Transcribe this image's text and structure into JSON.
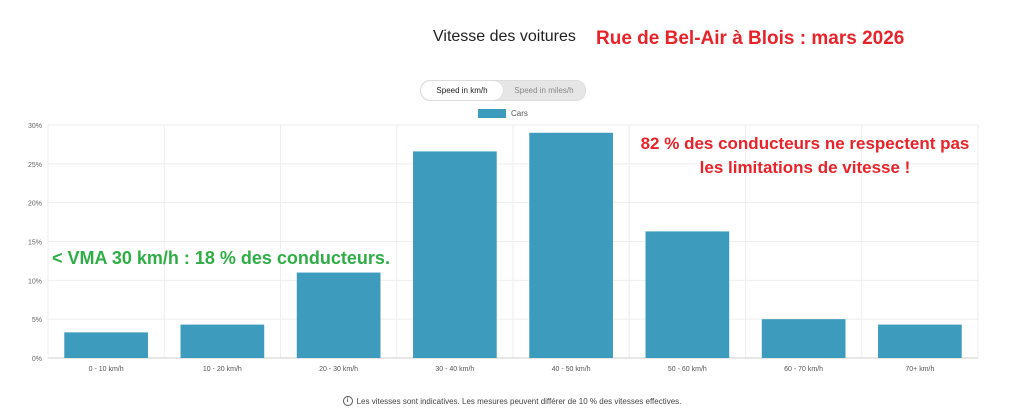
{
  "header": {
    "title": "Vitesse des voitures",
    "subtitle_annotation": "Rue de Bel-Air à Blois : mars 2026"
  },
  "toggle": {
    "options": [
      "Speed in km/h",
      "Speed in miles/h"
    ],
    "selected": "Speed in km/h"
  },
  "annotations": {
    "red_line1": "82 % des conducteurs ne respectent pas",
    "red_line2": "les limitations de vitesse !",
    "green": "< VMA 30 km/h : 18 % des conducteurs."
  },
  "footer": {
    "icon": "info-icon",
    "text": "Les vitesses sont indicatives. Les mesures peuvent différer de 10 % des vitesses effectives."
  },
  "colors": {
    "bar": "#3d9bbd",
    "annotation_red": "#e8232a",
    "annotation_green": "#2fae46"
  },
  "chart_data": {
    "type": "bar",
    "categories": [
      "0 - 10 km/h",
      "10 - 20 km/h",
      "20 - 30 km/h",
      "30 - 40 km/h",
      "40 - 50 km/h",
      "50 - 60 km/h",
      "60 - 70 km/h",
      "70+ km/h"
    ],
    "series": [
      {
        "name": "Cars",
        "values": [
          3.3,
          4.3,
          11.0,
          26.6,
          29.0,
          16.3,
          5.0,
          4.3
        ]
      }
    ],
    "ylim": [
      0,
      30
    ],
    "yticks": [
      "0%",
      "5%",
      "10%",
      "15%",
      "20%",
      "25%",
      "30%"
    ],
    "ytick_values": [
      0,
      5,
      10,
      15,
      20,
      25,
      30
    ],
    "grid": true,
    "legend_position": "top-center"
  }
}
